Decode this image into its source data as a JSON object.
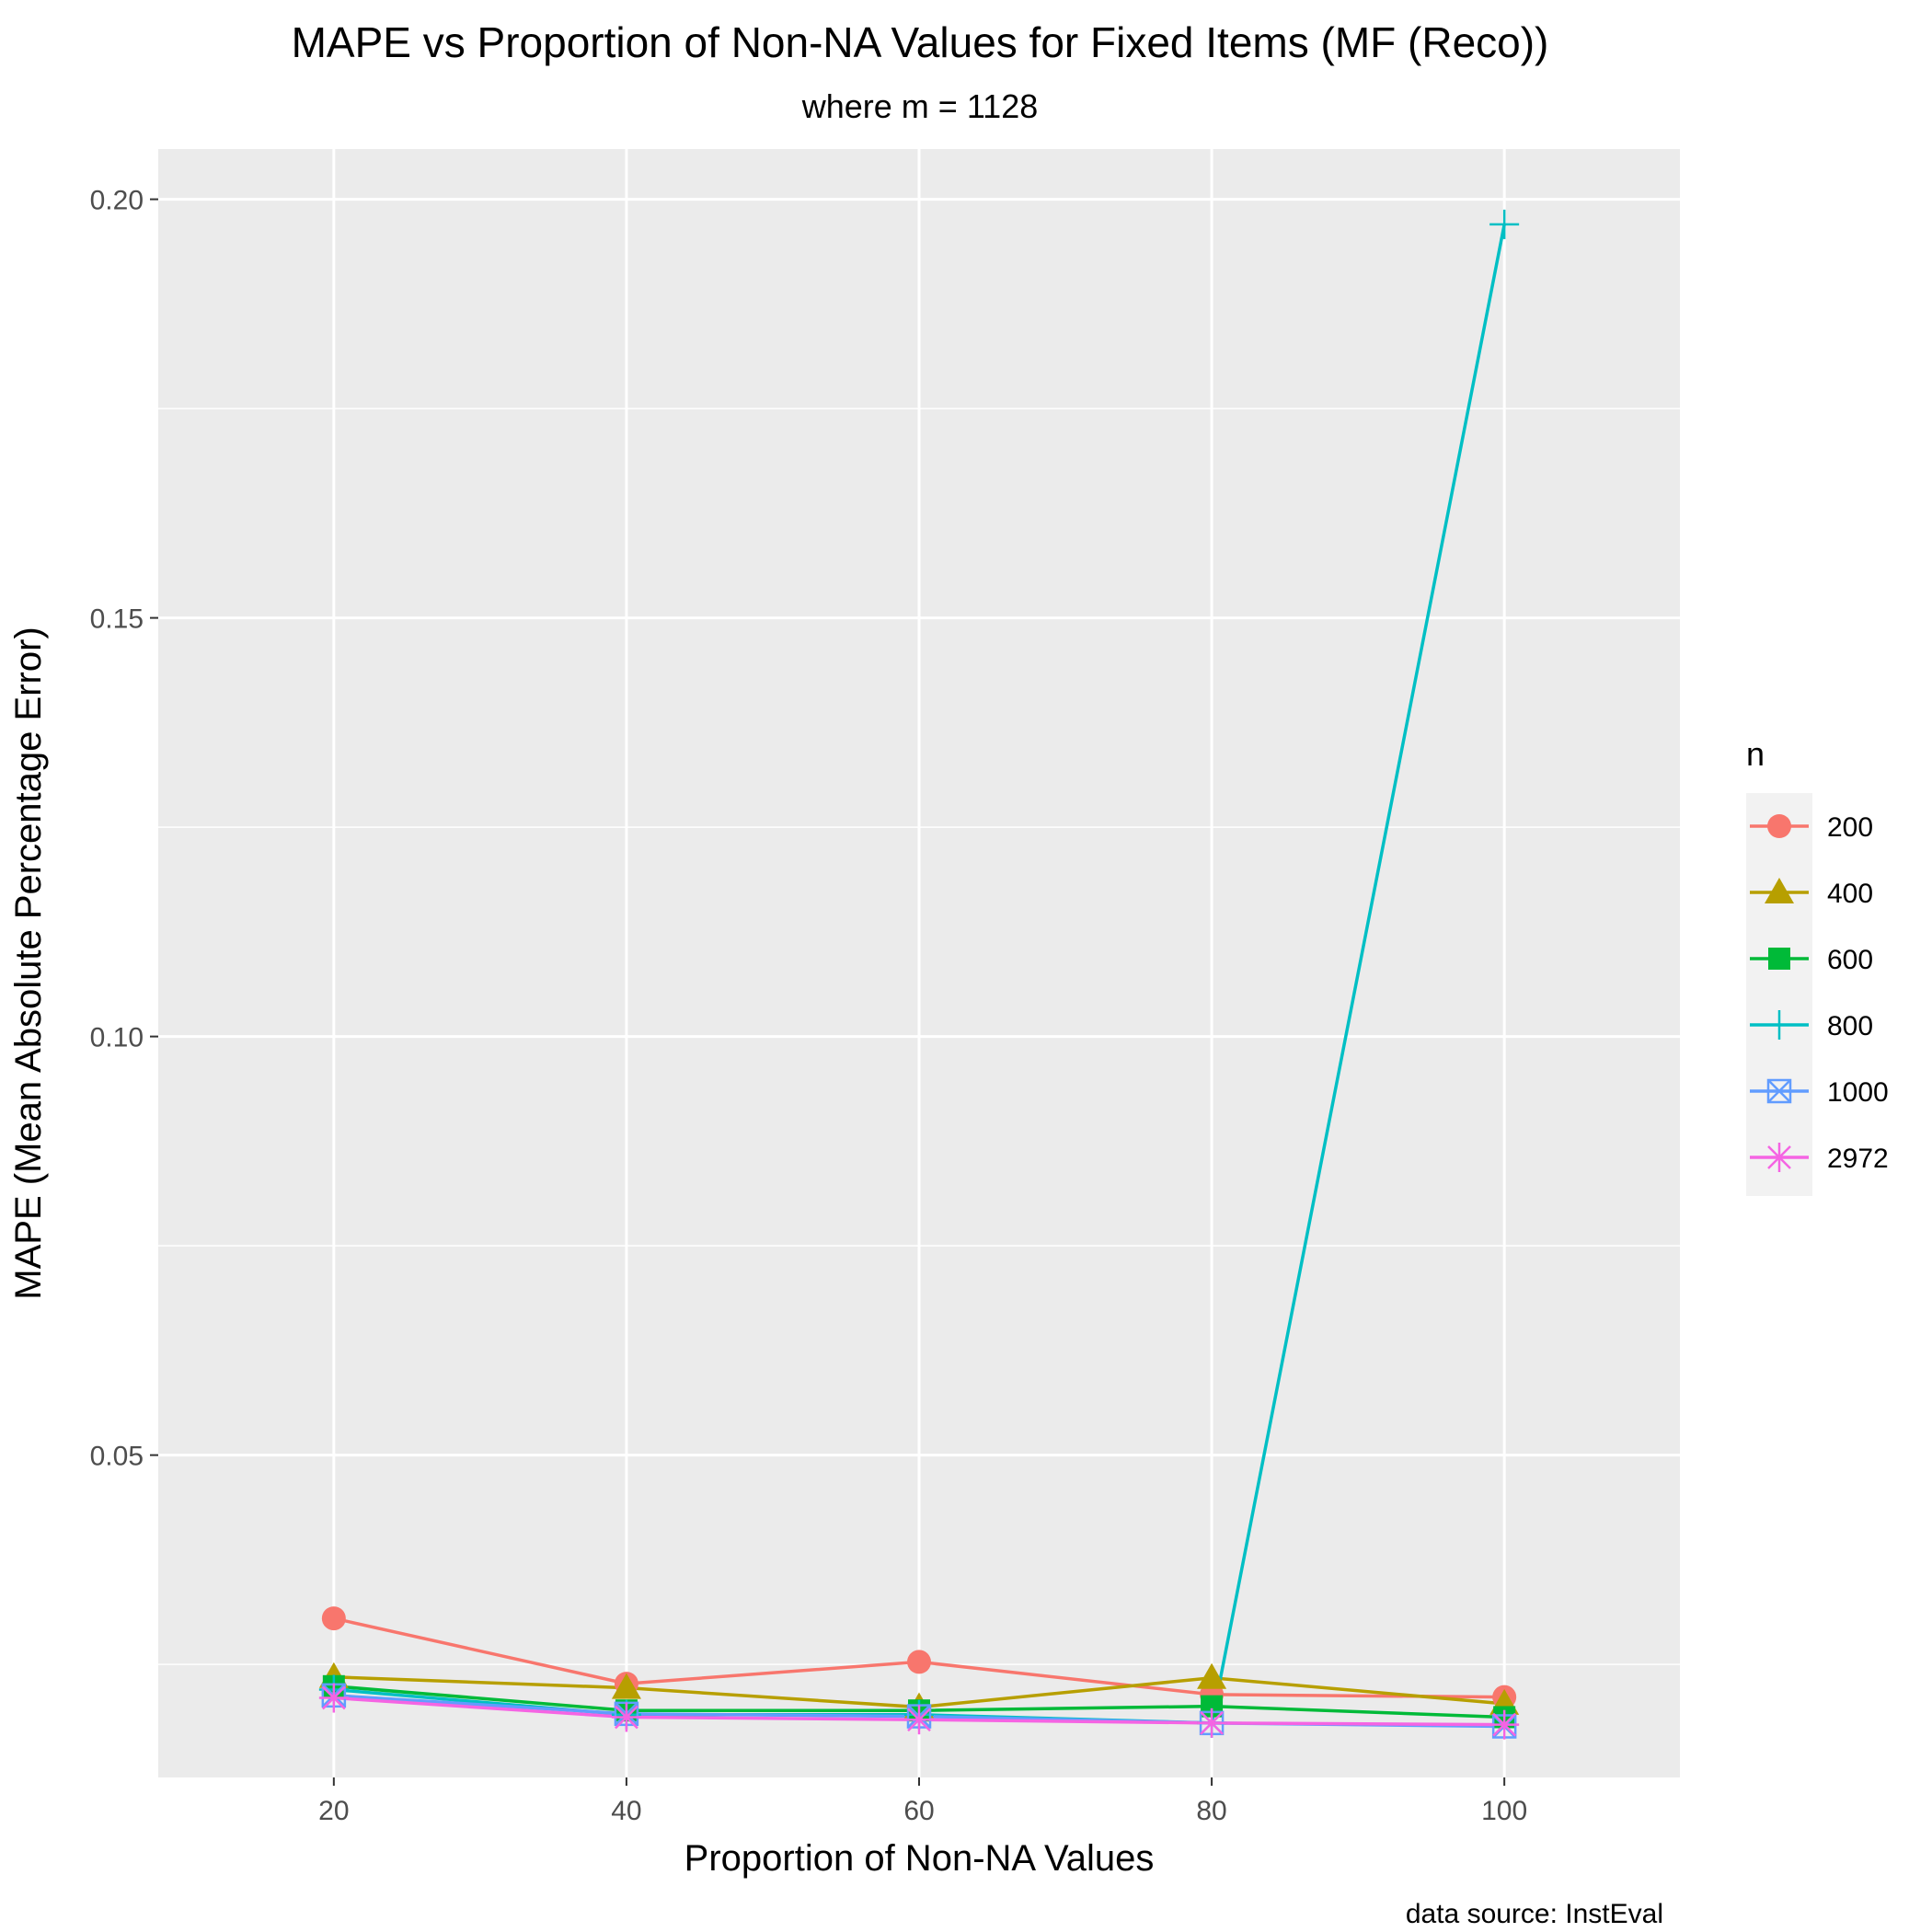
{
  "chart_data": {
    "type": "line",
    "title": "MAPE vs Proportion of Non-NA Values for Fixed Items (MF (Reco))",
    "subtitle": "where m = 1128",
    "xlabel": "Proportion of Non-NA Values",
    "ylabel": "MAPE (Mean Absolute Percentage Error)",
    "caption": "data source: InstEval",
    "x": [
      20,
      40,
      60,
      80,
      100
    ],
    "xlim": [
      8,
      112
    ],
    "ylim": [
      0.0115,
      0.206
    ],
    "x_ticks": [
      "20",
      "40",
      "60",
      "80",
      "100"
    ],
    "y_ticks": [
      "0.05",
      "0.10",
      "0.15",
      "0.20"
    ],
    "y_tick_values": [
      0.05,
      0.1,
      0.15,
      0.2
    ],
    "grid": true,
    "legend": {
      "title": "n",
      "position": "right"
    },
    "series": [
      {
        "name": "200",
        "color": "#F8766D",
        "shape": "circle",
        "values": [
          0.0305,
          0.0227,
          0.0253,
          0.0214,
          0.0211
        ]
      },
      {
        "name": "400",
        "color": "#B79F00",
        "shape": "triangle",
        "values": [
          0.0235,
          0.0222,
          0.0199,
          0.0234,
          0.0203
        ]
      },
      {
        "name": "600",
        "color": "#00BA38",
        "shape": "square",
        "values": [
          0.0224,
          0.0195,
          0.0195,
          0.02,
          0.0187
        ]
      },
      {
        "name": "800",
        "color": "#00BFC4",
        "shape": "plus",
        "values": [
          0.022,
          0.019,
          0.019,
          0.018,
          0.197
        ]
      },
      {
        "name": "1000",
        "color": "#619CFF",
        "shape": "boxcross",
        "values": [
          0.0213,
          0.0191,
          0.0188,
          0.018,
          0.0176
        ]
      },
      {
        "name": "2972",
        "color": "#F564E3",
        "shape": "asterisk",
        "values": [
          0.021,
          0.0187,
          0.0184,
          0.018,
          0.0178
        ]
      }
    ]
  }
}
